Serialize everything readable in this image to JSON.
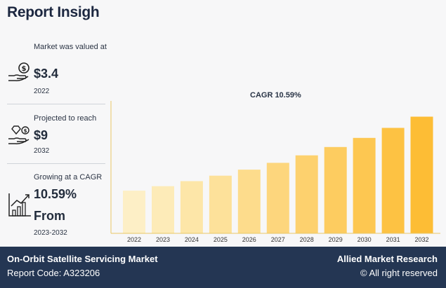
{
  "header": {
    "title": "Report Insigh"
  },
  "stats": [
    {
      "label": "Market was valued at",
      "value": "$3.4",
      "year": "2022"
    },
    {
      "label": "Projected to reach",
      "value": "$9",
      "year": "2032"
    },
    {
      "label": "Growing at a CAGR",
      "value": "10.59%",
      "value2": "From",
      "year": "2023-2032"
    }
  ],
  "chart_data": {
    "type": "bar",
    "title": "CAGR 10.59%",
    "categories": [
      "2022",
      "2023",
      "2024",
      "2025",
      "2026",
      "2027",
      "2028",
      "2029",
      "2030",
      "2031",
      "2032"
    ],
    "values": [
      3.4,
      3.76,
      4.16,
      4.6,
      5.08,
      5.62,
      6.22,
      6.88,
      7.61,
      8.41,
      9.3
    ],
    "ylim": [
      0,
      10
    ],
    "grid": false,
    "colors": [
      "#fdefc6",
      "#fdebb8",
      "#fde6a8",
      "#fde19a",
      "#fddc8c",
      "#fdd67d",
      "#fdd16e",
      "#fdcc60",
      "#fdc751",
      "#fdc243",
      "#fdbd35"
    ]
  },
  "footer": {
    "market_name": "On-Orbit Satellite Servicing Market",
    "report_code": "Report Code: A323206",
    "brand": "Allied Market Research",
    "copyright": "© All right reserved"
  }
}
